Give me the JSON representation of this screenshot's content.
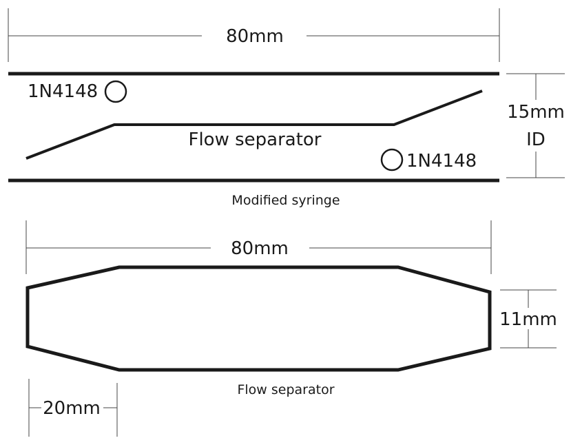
{
  "syringe": {
    "length_label": "80mm",
    "id_label_value": "15mm",
    "id_label_unit": "ID",
    "diode_label_1": "1N4148",
    "diode_label_2": "1N4148",
    "inner_label": "Flow separator",
    "caption": "Modified syringe"
  },
  "separator": {
    "length_label": "80mm",
    "height_label": "11mm",
    "taper_label": "20mm",
    "caption": "Flow separator"
  },
  "colors": {
    "line": "#1a1a1a",
    "dimension": "#444444",
    "background": "#ffffff"
  }
}
